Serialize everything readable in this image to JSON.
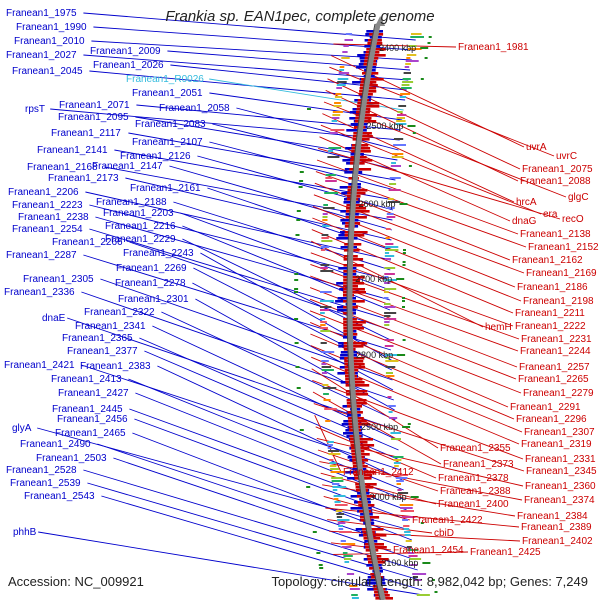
{
  "title": "Frankia sp. EAN1pec, complete genome",
  "footer": {
    "accession": "Accession: NC_009921",
    "topology": "Topology: circular; Length: 8,982,042 bp; Genes: 7,249"
  },
  "colors": {
    "reverse_strand": "#0000cc",
    "forward_strand": "#cc0000",
    "rna": "#33bbdd",
    "backbone": "#888888",
    "gc_skew": "#1a8a1a"
  },
  "scale_labels": [
    "2400 kbp",
    "2500 kbp",
    "2600 kbp",
    "2700 kbp",
    "2800 kbp",
    "2900 kbp",
    "3000 kbp",
    "3100 kbp"
  ],
  "left_labels": [
    {
      "text": "Franean1_1975",
      "color": "blue"
    },
    {
      "text": "Franean1_1990",
      "color": "blue"
    },
    {
      "text": "Franean1_2010",
      "color": "blue"
    },
    {
      "text": "Franean1_2009",
      "color": "blue"
    },
    {
      "text": "Franean1_2027",
      "color": "blue"
    },
    {
      "text": "Franean1_2026",
      "color": "blue"
    },
    {
      "text": "Franean1_2045",
      "color": "blue"
    },
    {
      "text": "Franean1_R0026",
      "color": "cyan"
    },
    {
      "text": "Franean1_2051",
      "color": "blue"
    },
    {
      "text": "Franean1_2071",
      "color": "blue"
    },
    {
      "text": "rpsT",
      "color": "blue"
    },
    {
      "text": "Franean1_2058",
      "color": "blue"
    },
    {
      "text": "Franean1_2095",
      "color": "blue"
    },
    {
      "text": "Franean1_2083",
      "color": "blue"
    },
    {
      "text": "Franean1_2117",
      "color": "blue"
    },
    {
      "text": "Franean1_2107",
      "color": "blue"
    },
    {
      "text": "Franean1_2141",
      "color": "blue"
    },
    {
      "text": "Franean1_2126",
      "color": "blue"
    },
    {
      "text": "Franean1_2168",
      "color": "blue"
    },
    {
      "text": "Franean1_2147",
      "color": "blue"
    },
    {
      "text": "Franean1_2173",
      "color": "blue"
    },
    {
      "text": "Franean1_2161",
      "color": "blue"
    },
    {
      "text": "Franean1_2206",
      "color": "blue"
    },
    {
      "text": "Franean1_2188",
      "color": "blue"
    },
    {
      "text": "Franean1_2223",
      "color": "blue"
    },
    {
      "text": "Franean1_2203",
      "color": "blue"
    },
    {
      "text": "Franean1_2238",
      "color": "blue"
    },
    {
      "text": "Franean1_2216",
      "color": "blue"
    },
    {
      "text": "Franean1_2254",
      "color": "blue"
    },
    {
      "text": "Franean1_2266",
      "color": "blue"
    },
    {
      "text": "Franean1_2229",
      "color": "blue"
    },
    {
      "text": "Franean1_2287",
      "color": "blue"
    },
    {
      "text": "Franean1_2243",
      "color": "blue"
    },
    {
      "text": "Franean1_2269",
      "color": "blue"
    },
    {
      "text": "Franean1_2305",
      "color": "blue"
    },
    {
      "text": "Franean1_2278",
      "color": "blue"
    },
    {
      "text": "Franean1_2336",
      "color": "blue"
    },
    {
      "text": "Franean1_2301",
      "color": "blue"
    },
    {
      "text": "Franean1_2322",
      "color": "blue"
    },
    {
      "text": "dnaE",
      "color": "blue"
    },
    {
      "text": "Franean1_2341",
      "color": "blue"
    },
    {
      "text": "Franean1_2365",
      "color": "blue"
    },
    {
      "text": "Franean1_2377",
      "color": "blue"
    },
    {
      "text": "Franean1_2421",
      "color": "blue"
    },
    {
      "text": "Franean1_2383",
      "color": "blue"
    },
    {
      "text": "Franean1_2413",
      "color": "blue"
    },
    {
      "text": "Franean1_2427",
      "color": "blue"
    },
    {
      "text": "Franean1_2445",
      "color": "blue"
    },
    {
      "text": "Franean1_2456",
      "color": "blue"
    },
    {
      "text": "glyA",
      "color": "blue"
    },
    {
      "text": "Franean1_2465",
      "color": "blue"
    },
    {
      "text": "Franean1_2490",
      "color": "blue"
    },
    {
      "text": "Franean1_2503",
      "color": "blue"
    },
    {
      "text": "Franean1_2528",
      "color": "blue"
    },
    {
      "text": "Franean1_2539",
      "color": "blue"
    },
    {
      "text": "Franean1_2543",
      "color": "blue"
    },
    {
      "text": "phhB",
      "color": "blue"
    }
  ],
  "right_labels": [
    {
      "text": "Franean1_1981"
    },
    {
      "text": "uvrA"
    },
    {
      "text": "uvrC"
    },
    {
      "text": "Franean1_2075"
    },
    {
      "text": "Franean1_2088"
    },
    {
      "text": "glgC"
    },
    {
      "text": "hrcA"
    },
    {
      "text": "era"
    },
    {
      "text": "dnaG"
    },
    {
      "text": "recO"
    },
    {
      "text": "Franean1_2138"
    },
    {
      "text": "Franean1_2152"
    },
    {
      "text": "Franean1_2162"
    },
    {
      "text": "Franean1_2169"
    },
    {
      "text": "Franean1_2186"
    },
    {
      "text": "Franean1_2198"
    },
    {
      "text": "Franean1_2211"
    },
    {
      "text": "hemH"
    },
    {
      "text": "Franean1_2222"
    },
    {
      "text": "Franean1_2231"
    },
    {
      "text": "Franean1_2244"
    },
    {
      "text": "Franean1_2257"
    },
    {
      "text": "Franean1_2265"
    },
    {
      "text": "Franean1_2279"
    },
    {
      "text": "Franean1_2291"
    },
    {
      "text": "Franean1_2296"
    },
    {
      "text": "Franean1_2307"
    },
    {
      "text": "Franean1_2319"
    },
    {
      "text": "Franean1_2355"
    },
    {
      "text": "Franean1_2331"
    },
    {
      "text": "Franean1_2373"
    },
    {
      "text": "Franean1_2345"
    },
    {
      "text": "Franean1_2412"
    },
    {
      "text": "Franean1_2378"
    },
    {
      "text": "Franean1_2360"
    },
    {
      "text": "Franean1_2388"
    },
    {
      "text": "Franean1_2374"
    },
    {
      "text": "Franean1_2400"
    },
    {
      "text": "Franean1_2384"
    },
    {
      "text": "Franean1_2422"
    },
    {
      "text": "Franean1_2389"
    },
    {
      "text": "cbiD"
    },
    {
      "text": "Franean1_2402"
    },
    {
      "text": "Franean1_2454"
    },
    {
      "text": "Franean1_2425"
    }
  ]
}
